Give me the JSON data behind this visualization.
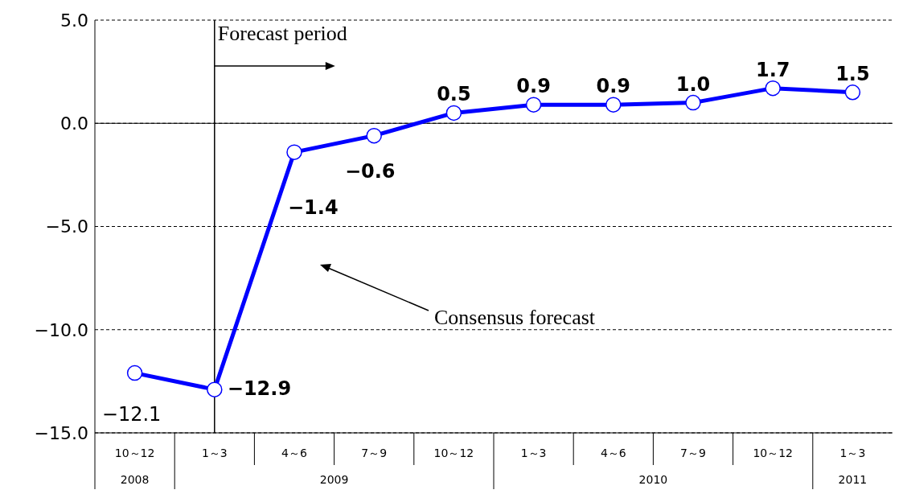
{
  "chart_data": {
    "type": "line",
    "categories": [
      "10～12",
      "1～3",
      "4～6",
      "7～9",
      "10～12",
      "1～3",
      "4～6",
      "7～9",
      "10～12",
      "1～3"
    ],
    "series": [
      {
        "color": "#0000ff",
        "values": [
          -12.1,
          -12.9,
          -1.4,
          -0.6,
          0.5,
          0.9,
          0.9,
          1.0,
          1.7,
          1.5
        ],
        "value_labels": [
          "−12.1",
          "−12.9",
          "−1.4",
          "−0.6",
          "0.5",
          "0.9",
          "0.9",
          "1.0",
          "1.7",
          "1.5"
        ]
      }
    ],
    "ylim": [
      -15,
      5
    ],
    "yticks": [
      {
        "value": -15,
        "label": "−15.0"
      },
      {
        "value": -10,
        "label": "−10.0"
      },
      {
        "value": -5,
        "label": "−5.0"
      },
      {
        "value": 0,
        "label": "0.0"
      },
      {
        "value": 5,
        "label": "5.0"
      }
    ],
    "grid": "y",
    "marker": "circle",
    "line_style": "solid",
    "legend": false,
    "ref_lines": [
      {
        "axis": "x",
        "value": "1～3",
        "label": "Forecast period",
        "color": "#000000"
      }
    ],
    "annotations": [
      "2008",
      "2009",
      "2010",
      "2011",
      "Consensus forecast"
    ]
  }
}
